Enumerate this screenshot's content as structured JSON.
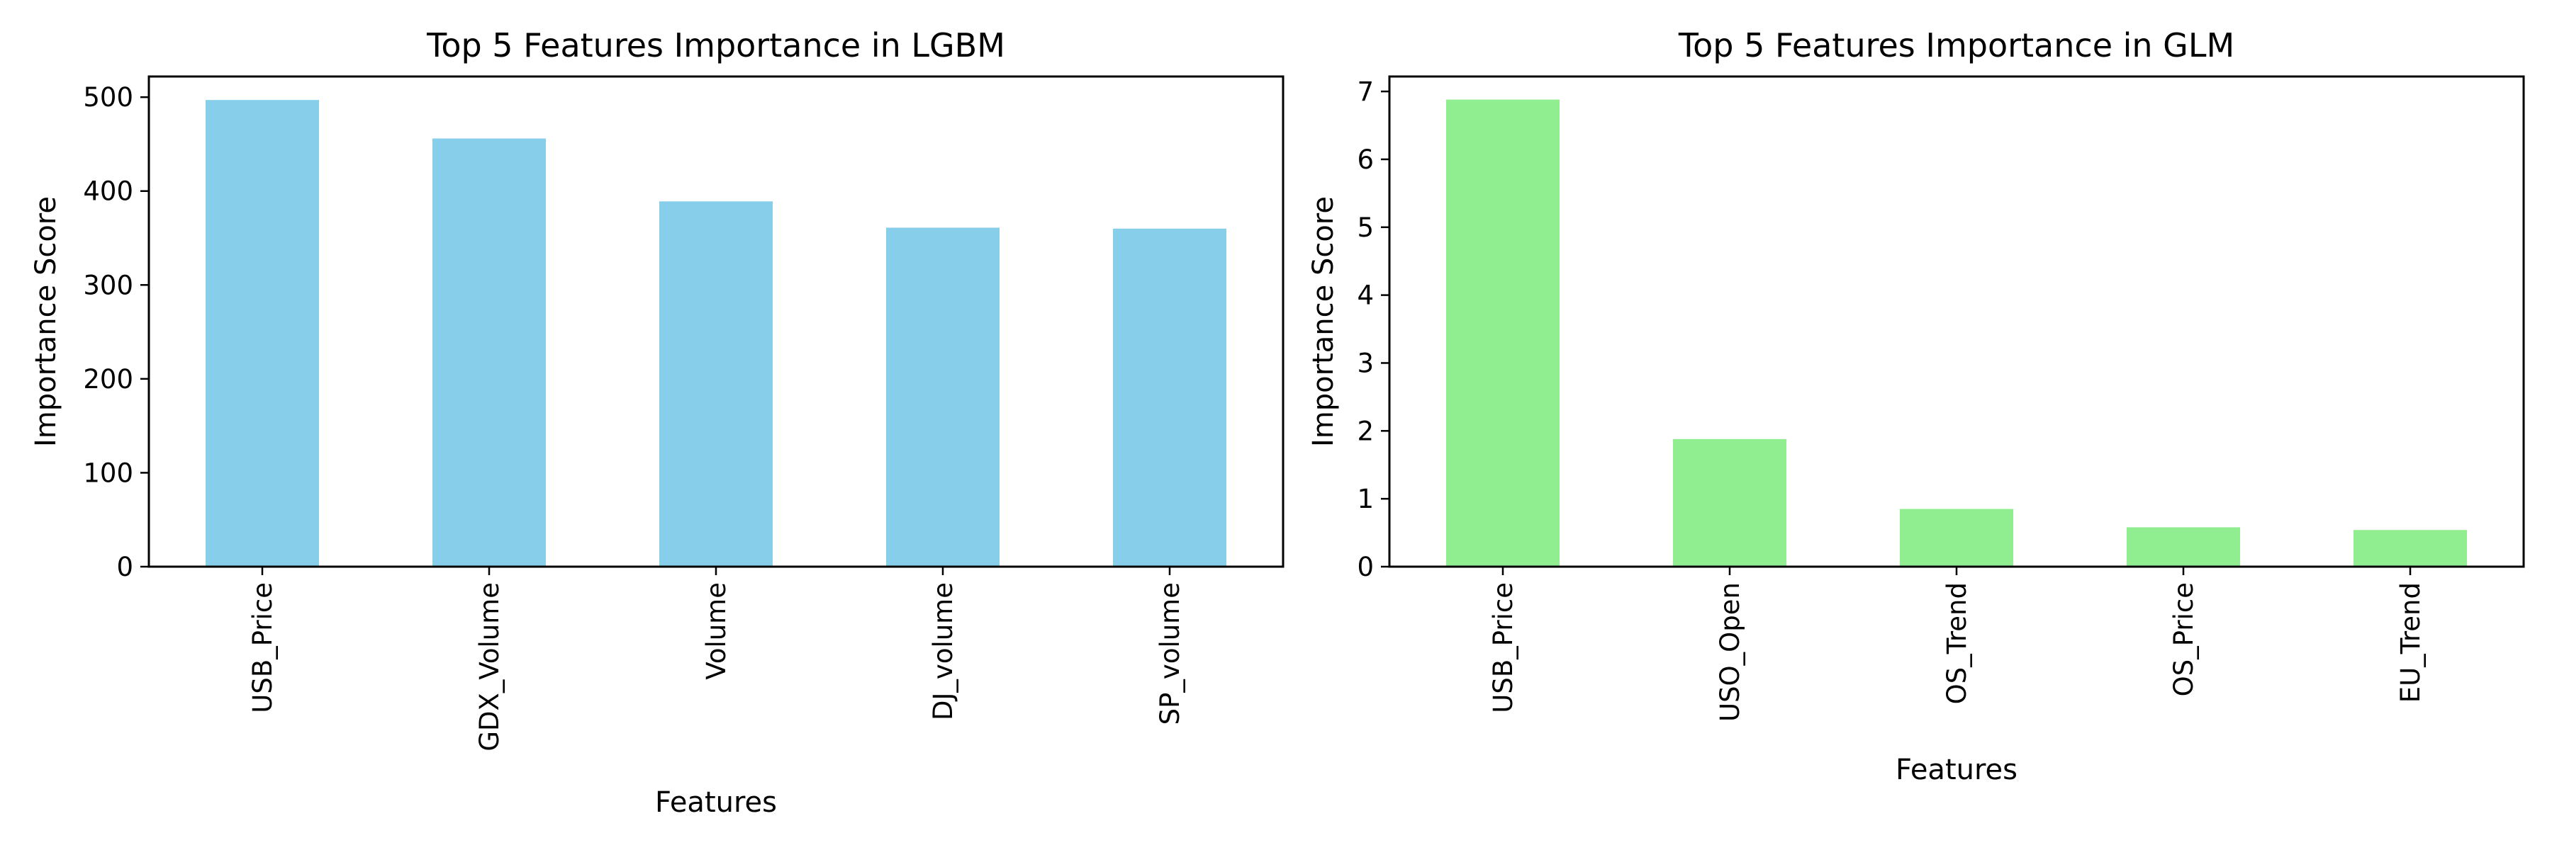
{
  "chart_data": [
    {
      "type": "bar",
      "title": "Top 5 Features Importance in LGBM",
      "xlabel": "Features",
      "ylabel": "Importance Score",
      "categories": [
        "USB_Price",
        "GDX_Volume",
        "Volume",
        "DJ_volume",
        "SP_volume"
      ],
      "values": [
        497,
        456,
        389,
        361,
        360
      ],
      "ylim": [
        0,
        522
      ],
      "yticks": [
        0,
        100,
        200,
        300,
        400,
        500
      ],
      "color": "#87CEEB",
      "grid": false
    },
    {
      "type": "bar",
      "title": "Top 5 Features Importance in GLM",
      "xlabel": "Features",
      "ylabel": "Importance Score",
      "categories": [
        "USB_Price",
        "USO_Open",
        "OS_Trend",
        "OS_Price",
        "EU_Trend"
      ],
      "values": [
        6.88,
        1.88,
        0.85,
        0.58,
        0.54
      ],
      "ylim": [
        0,
        7.22
      ],
      "yticks": [
        0,
        1,
        2,
        3,
        4,
        5,
        6,
        7
      ],
      "color": "#90EE90",
      "grid": false
    }
  ]
}
